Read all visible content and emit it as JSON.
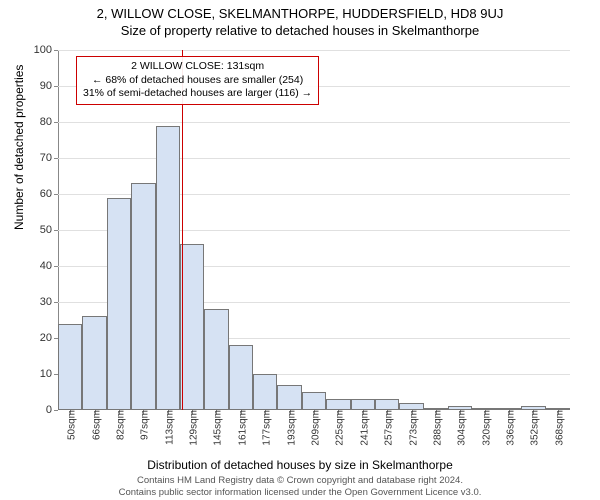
{
  "title_line1": "2, WILLOW CLOSE, SKELMANTHORPE, HUDDERSFIELD, HD8 9UJ",
  "title_line2": "Size of property relative to detached houses in Skelmanthorpe",
  "ylabel": "Number of detached properties",
  "xlabel": "Distribution of detached houses by size in Skelmanthorpe",
  "chart": {
    "type": "histogram",
    "ylim": [
      0,
      100
    ],
    "ytick_step": 10,
    "background_color": "#ffffff",
    "grid_color": "#e0e0e0",
    "bar_fill": "#d6e2f3",
    "bar_border": "#777777",
    "marker_color": "#cc0000",
    "categories": [
      "50sqm",
      "66sqm",
      "82sqm",
      "97sqm",
      "113sqm",
      "129sqm",
      "145sqm",
      "161sqm",
      "177sqm",
      "193sqm",
      "209sqm",
      "225sqm",
      "241sqm",
      "257sqm",
      "273sqm",
      "288sqm",
      "304sqm",
      "320sqm",
      "336sqm",
      "352sqm",
      "368sqm"
    ],
    "values": [
      24,
      26,
      59,
      63,
      79,
      46,
      28,
      18,
      10,
      7,
      5,
      3,
      3,
      3,
      2,
      0,
      1,
      0,
      0,
      1,
      0
    ],
    "marker_x_index": 5.1
  },
  "annotation": {
    "line1": "2 WILLOW CLOSE: 131sqm",
    "line2": "← 68% of detached houses are smaller (254)",
    "line3": "31% of semi-detached houses are larger (116) →",
    "border_color": "#cc0000"
  },
  "footer_line1": "Contains HM Land Registry data © Crown copyright and database right 2024.",
  "footer_line2": "Contains public sector information licensed under the Open Government Licence v3.0.",
  "fonts": {
    "title_fontsize": 13,
    "label_fontsize": 12,
    "tick_fontsize": 11,
    "annotation_fontsize": 10.5,
    "footer_fontsize": 9.5
  }
}
